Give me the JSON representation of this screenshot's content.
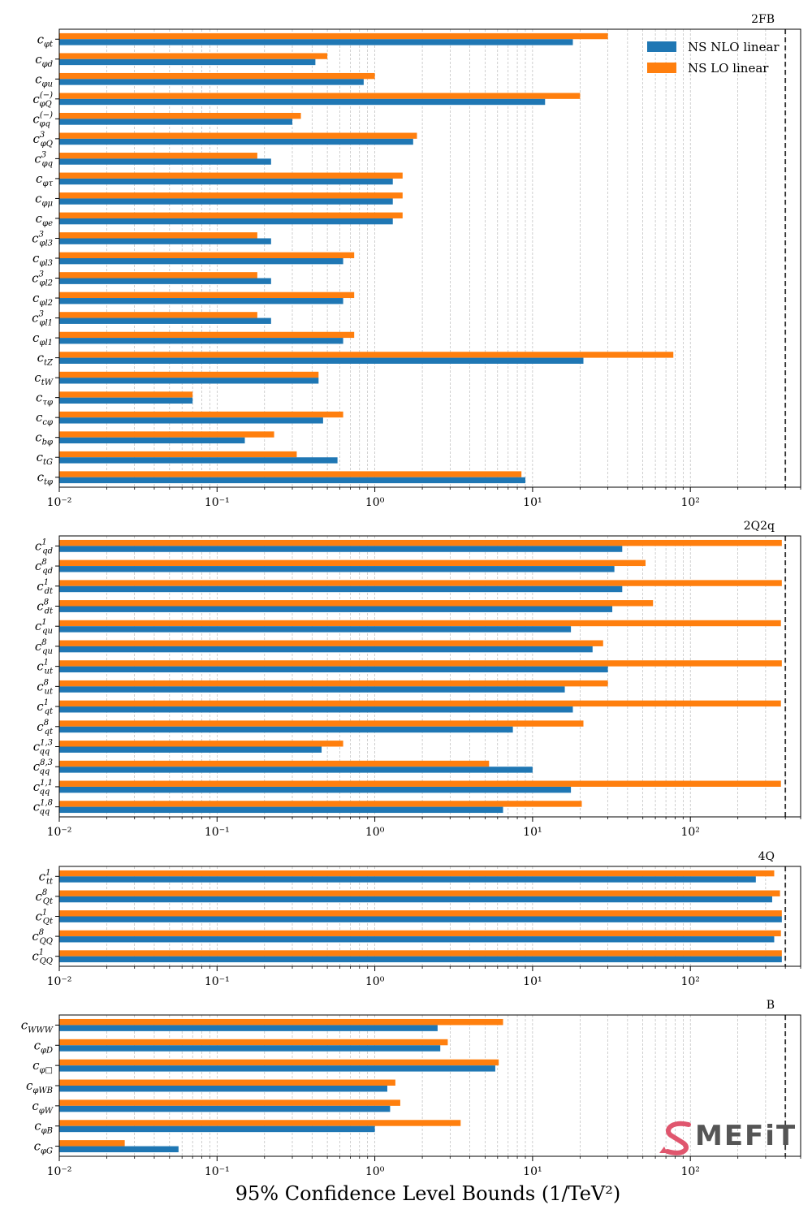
{
  "figure": {
    "xlabel": "95% Confidence Level Bounds (1/TeV²)",
    "logo_text": "MEFiT"
  },
  "legend": [
    "NS  NLO linear",
    "NS  LO linear"
  ],
  "colors": {
    "nlo": "#1f77b4",
    "lo": "#ff7f0e"
  },
  "chart_data": [
    {
      "type": "bar",
      "orientation": "horizontal",
      "title": "2FB",
      "xscale": "log",
      "xlim": [
        0.01,
        500
      ],
      "xticks": [
        "10⁻²",
        "10⁻¹",
        "10⁰",
        "10¹",
        "10²"
      ],
      "reference_line": 400,
      "legend_position": "upper-right",
      "categories": [
        "c_φt",
        "c_φd",
        "c_φu",
        "c_φQ^(−)",
        "c_φq^(−)",
        "c_φQ^3",
        "c_φq^3",
        "c_φτ",
        "c_φμ",
        "c_φe",
        "c_φl3^3",
        "c_φl3",
        "c_φl2^3",
        "c_φl2",
        "c_φl1^3",
        "c_φl1",
        "c_tZ",
        "c_tW",
        "c_τφ",
        "c_cφ",
        "c_bφ",
        "c_tG",
        "c_tφ"
      ],
      "series": [
        {
          "name": "NS  NLO linear",
          "values": [
            18,
            0.42,
            0.85,
            12,
            0.3,
            1.75,
            0.22,
            1.3,
            1.3,
            1.3,
            0.22,
            0.63,
            0.22,
            0.63,
            0.22,
            0.63,
            21,
            0.44,
            0.07,
            0.47,
            0.15,
            0.58,
            9
          ]
        },
        {
          "name": "NS  LO linear",
          "values": [
            30,
            0.5,
            1.0,
            20,
            0.34,
            1.85,
            0.18,
            1.5,
            1.5,
            1.5,
            0.18,
            0.74,
            0.18,
            0.74,
            0.18,
            0.74,
            78,
            0.44,
            0.07,
            0.63,
            0.23,
            0.32,
            8.5
          ]
        }
      ]
    },
    {
      "type": "bar",
      "orientation": "horizontal",
      "title": "2Q2q",
      "xscale": "log",
      "xlim": [
        0.01,
        500
      ],
      "xticks": [
        "10⁻²",
        "10⁻¹",
        "10⁰",
        "10¹",
        "10²"
      ],
      "reference_line": 400,
      "categories": [
        "c_qd^1",
        "c_qd^8",
        "c_dt^1",
        "c_dt^8",
        "c_qu^1",
        "c_qu^8",
        "c_ut^1",
        "c_ut^8",
        "c_qt^1",
        "c_qt^8",
        "c_qq^1,3",
        "c_qq^8,3",
        "c_qq^1,1",
        "c_qq^1,8"
      ],
      "series": [
        {
          "name": "NS  NLO linear",
          "values": [
            37,
            33,
            37,
            32,
            17.5,
            24,
            30,
            16,
            18,
            7.5,
            0.46,
            10,
            17.5,
            6.5
          ]
        },
        {
          "name": "NS  LO linear",
          "values": [
            380,
            52,
            380,
            58,
            375,
            28,
            380,
            30,
            375,
            21,
            0.63,
            5.3,
            375,
            20.5
          ]
        }
      ]
    },
    {
      "type": "bar",
      "orientation": "horizontal",
      "title": "4Q",
      "xscale": "log",
      "xlim": [
        0.01,
        500
      ],
      "xticks": [
        "10⁻²",
        "10⁻¹",
        "10⁰",
        "10¹",
        "10²"
      ],
      "reference_line": 400,
      "categories": [
        "c_tt^1",
        "c_Qt^8",
        "c_Qt^1",
        "c_QQ^8",
        "c_QQ^1"
      ],
      "series": [
        {
          "name": "NS  NLO linear",
          "values": [
            260,
            330,
            380,
            340,
            380
          ]
        },
        {
          "name": "NS  LO linear",
          "values": [
            340,
            370,
            380,
            375,
            380
          ]
        }
      ]
    },
    {
      "type": "bar",
      "orientation": "horizontal",
      "title": "B",
      "xscale": "log",
      "xlim": [
        0.01,
        500
      ],
      "xticks": [
        "10⁻²",
        "10⁻¹",
        "10⁰",
        "10¹",
        "10²"
      ],
      "reference_line": 400,
      "categories": [
        "c_WWW",
        "c_φD",
        "c_φ□",
        "c_φWB",
        "c_φW",
        "c_φB",
        "c_φG"
      ],
      "series": [
        {
          "name": "NS  NLO linear",
          "values": [
            2.5,
            2.6,
            5.8,
            1.2,
            1.25,
            1.0,
            0.057
          ]
        },
        {
          "name": "NS  LO linear",
          "values": [
            6.5,
            2.9,
            6.1,
            1.35,
            1.45,
            3.5,
            0.026
          ]
        }
      ]
    }
  ]
}
